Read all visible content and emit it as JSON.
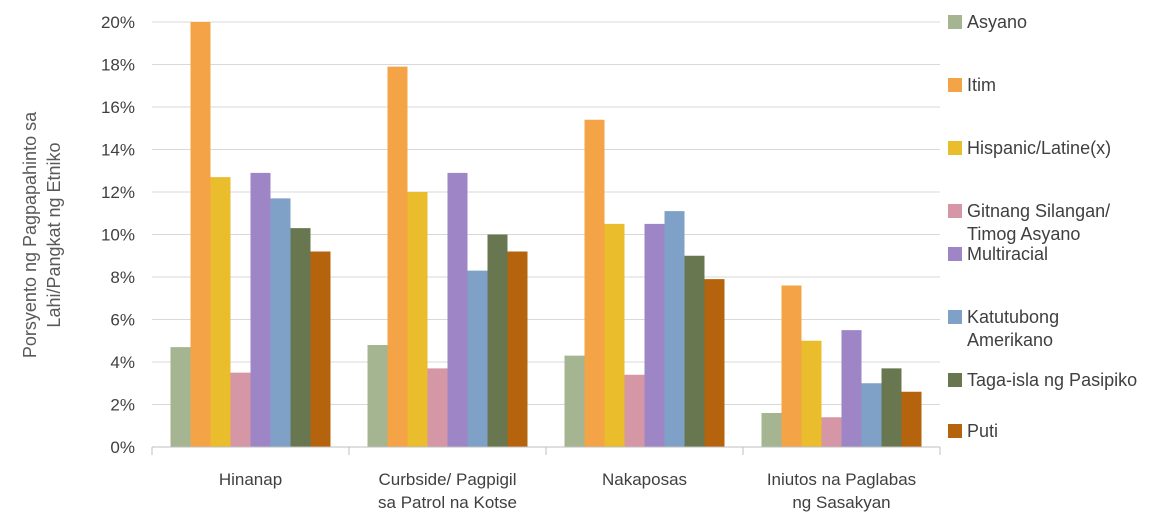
{
  "chart_data": {
    "type": "bar",
    "ylabel_lines": [
      "Porsyento ng Pagpapahinto sa",
      "Lahi/Pangkat ng Etniko"
    ],
    "categories": [
      [
        "Hinanap"
      ],
      [
        "Curbside/ Pagpigil",
        "sa Patrol na Kotse"
      ],
      [
        "Nakaposas"
      ],
      [
        "Iniutos na Paglabas",
        "ng Sasakyan"
      ]
    ],
    "ylim": [
      0,
      20
    ],
    "yticks": [
      0,
      2,
      4,
      6,
      8,
      10,
      12,
      14,
      16,
      18,
      20
    ],
    "ytick_labels": [
      "0%",
      "2%",
      "4%",
      "6%",
      "8%",
      "10%",
      "12%",
      "14%",
      "16%",
      "18%",
      "20%"
    ],
    "legend_position": "right",
    "grid": "horizontal",
    "series": [
      {
        "name": "Asyano",
        "color": "#a5b592",
        "values": [
          4.7,
          4.8,
          4.3,
          1.6
        ]
      },
      {
        "name": "Itim",
        "color": "#f4a347",
        "values": [
          20.0,
          17.9,
          15.4,
          7.6
        ]
      },
      {
        "name": "Hispanic/Latine(x)",
        "color": "#e9bd2c",
        "values": [
          12.7,
          12.0,
          10.5,
          5.0
        ]
      },
      {
        "name": "Gitnang Silangan/ Timog Asyano",
        "color": "#d597a6",
        "values": [
          3.5,
          3.7,
          3.4,
          1.4
        ]
      },
      {
        "name": "Multiracial",
        "color": "#9e86c6",
        "values": [
          12.9,
          12.9,
          10.5,
          5.5
        ]
      },
      {
        "name": "Katutubong Amerikano",
        "color": "#7fa1c8",
        "values": [
          11.7,
          8.3,
          11.1,
          3.0
        ]
      },
      {
        "name": "Taga-isla ng Pasipiko",
        "color": "#68774f",
        "values": [
          10.3,
          10.0,
          9.0,
          3.7
        ]
      },
      {
        "name": "Puti",
        "color": "#b5640d",
        "values": [
          9.2,
          9.2,
          7.9,
          2.6
        ]
      }
    ],
    "legend_lines": [
      [
        "Asyano"
      ],
      [
        "Itim"
      ],
      [
        "Hispanic/Latine(x)"
      ],
      [
        "Gitnang Silangan/",
        "Timog Asyano"
      ],
      [
        "Multiracial"
      ],
      [
        "Katutubong",
        "Amerikano"
      ],
      [
        "Taga-isla ng Pasipiko"
      ],
      [
        "Puti"
      ]
    ]
  }
}
